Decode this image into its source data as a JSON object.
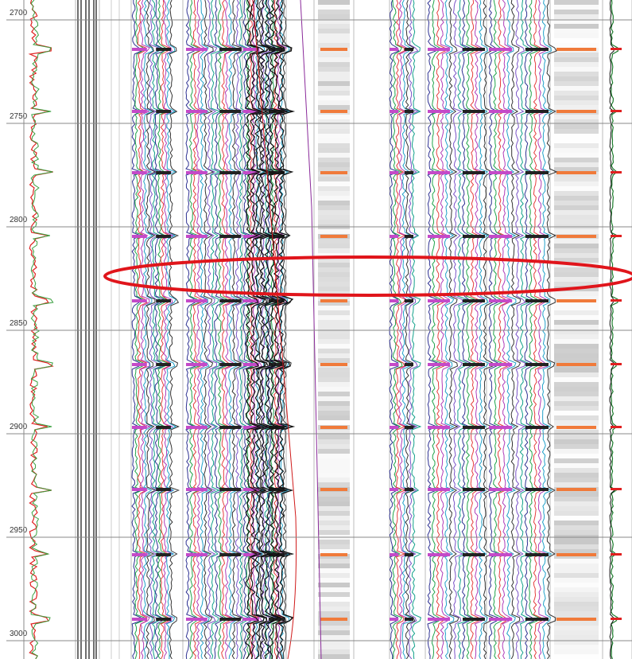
{
  "depth_track": {
    "labels": [
      "2700",
      "2750",
      "2800",
      "2850",
      "2900",
      "2950",
      "3000"
    ]
  }
}
